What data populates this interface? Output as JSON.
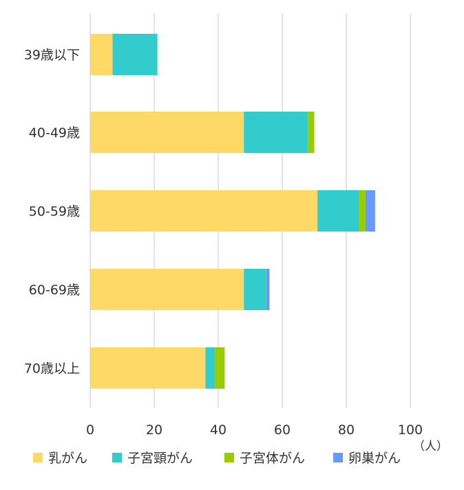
{
  "chart_data": {
    "type": "bar",
    "orientation": "horizontal",
    "stacked": true,
    "categories": [
      "39歳以下",
      "40-49歳",
      "50-59歳",
      "60-69歳",
      "70歳以上"
    ],
    "series": [
      {
        "name": "乳がん",
        "color": "#FFD966",
        "values": [
          7,
          48,
          71,
          48,
          36
        ]
      },
      {
        "name": "子宮頸がん",
        "color": "#33CCCC",
        "values": [
          14,
          20,
          13,
          7,
          3
        ]
      },
      {
        "name": "子宮体がん",
        "color": "#99CC00",
        "values": [
          0,
          2,
          2,
          0,
          3
        ]
      },
      {
        "name": "卵巣がん",
        "color": "#6699FF",
        "values": [
          0,
          0,
          3,
          1,
          0
        ]
      }
    ],
    "xlim": [
      0,
      100
    ],
    "xticks": [
      0,
      20,
      40,
      60,
      80,
      100
    ],
    "x_unit": "（人）",
    "grid": true,
    "legend": "bottom"
  }
}
